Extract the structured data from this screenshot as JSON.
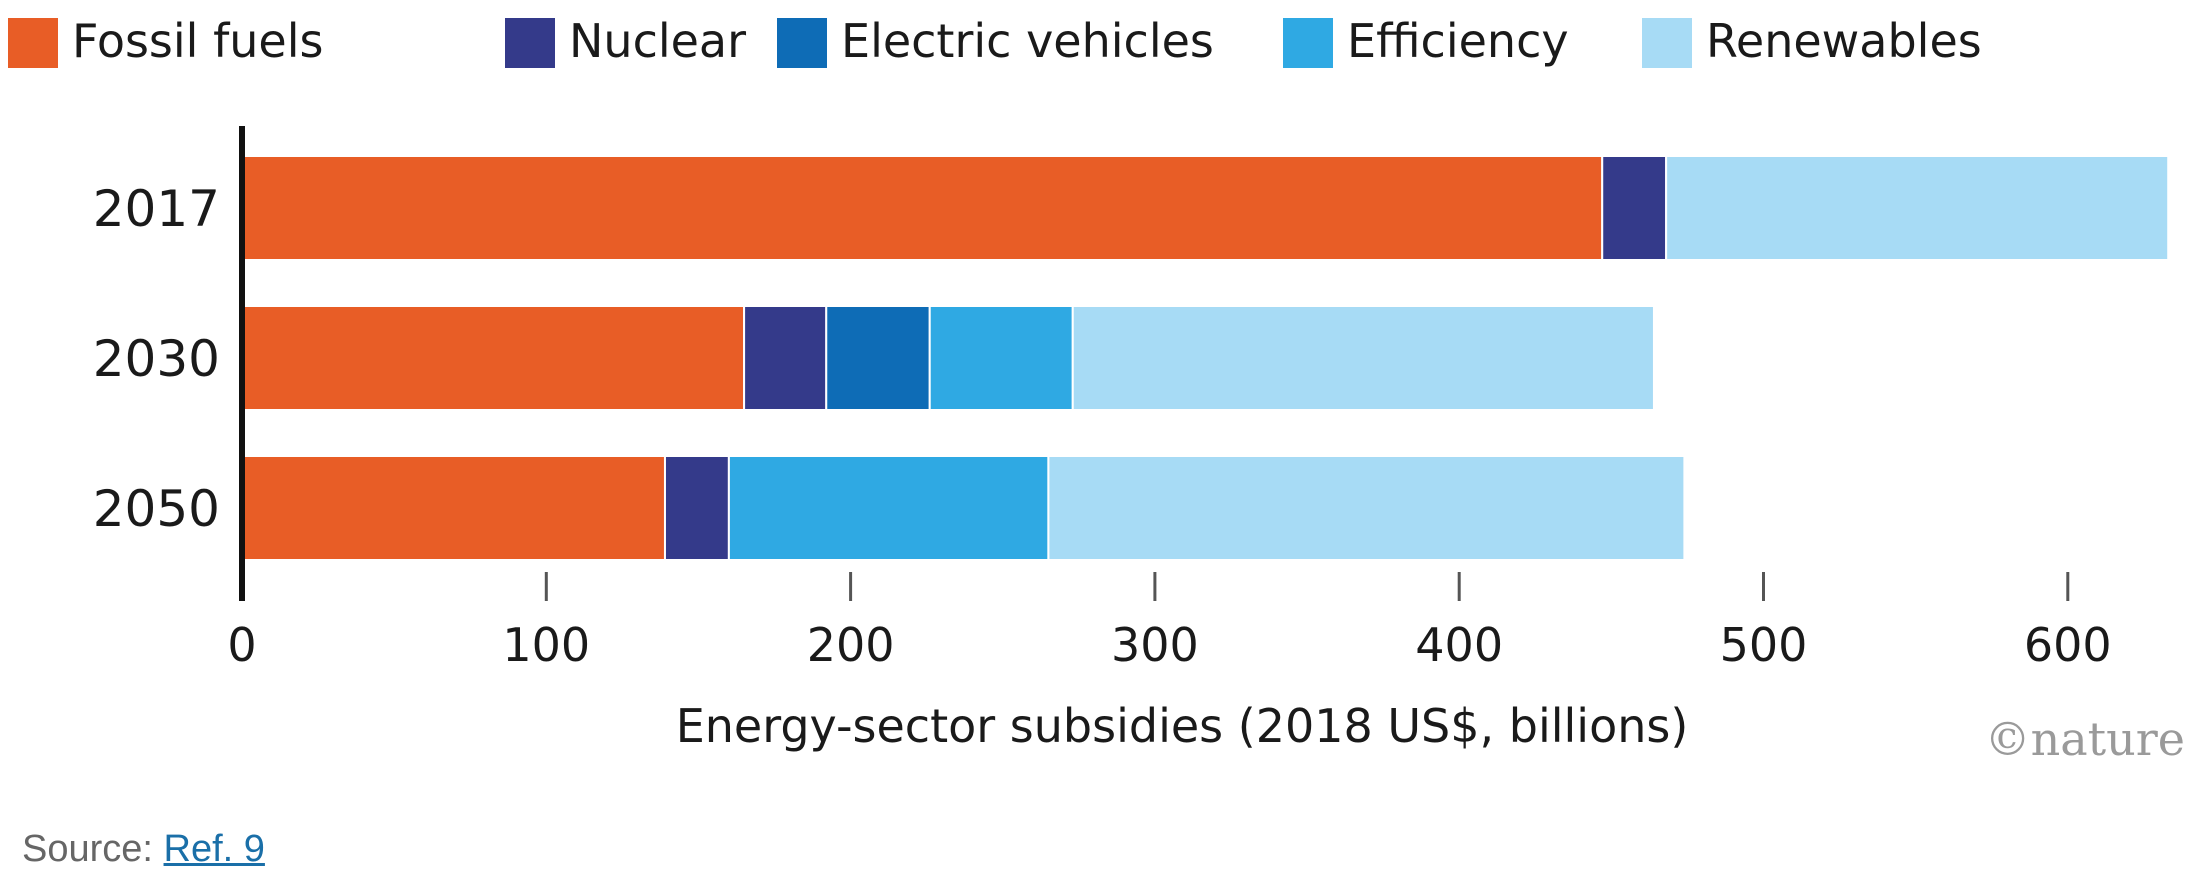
{
  "chart_data": {
    "type": "bar",
    "orientation": "horizontal",
    "stacked": true,
    "categories": [
      "2017",
      "2030",
      "2050"
    ],
    "series": [
      {
        "name": "Fossil fuels",
        "color": "#e85d26",
        "values": [
          447,
          165,
          139
        ]
      },
      {
        "name": "Nuclear",
        "color": "#343a8a",
        "values": [
          21,
          27,
          21
        ]
      },
      {
        "name": "Electric vehicles",
        "color": "#0e6cb6",
        "values": [
          0,
          34,
          0
        ]
      },
      {
        "name": "Efficiency",
        "color": "#2fa9e3",
        "values": [
          0,
          47,
          105
        ]
      },
      {
        "name": "Renewables",
        "color": "#a7dbf5",
        "values": [
          165,
          191,
          209
        ]
      }
    ],
    "xlim": [
      0,
      630
    ],
    "xticks": [
      "0",
      "100",
      "200",
      "300",
      "400",
      "500",
      "600"
    ],
    "xlabel": "Energy-sector subsidies (2018 US$, billions)",
    "ylabel": "",
    "title": "",
    "legend_position": "top",
    "grid": false
  },
  "credit": "©nature",
  "source": {
    "label": "Source:",
    "link_text": "Ref. 9"
  }
}
